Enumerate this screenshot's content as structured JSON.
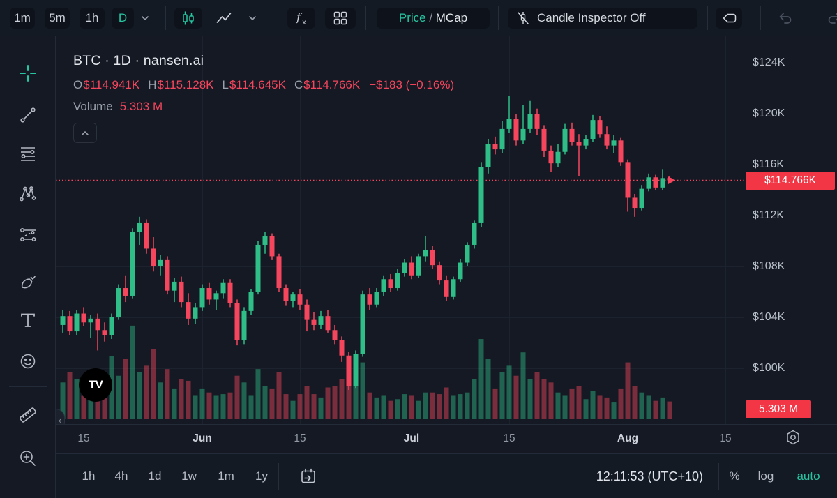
{
  "top_toolbar": {
    "intervals": [
      {
        "label": "1m"
      },
      {
        "label": "5m"
      },
      {
        "label": "1h"
      },
      {
        "label": "D",
        "active": true
      }
    ],
    "price_mcap": {
      "price": "Price",
      "sep": " / ",
      "mcap": "MCap"
    },
    "candle_inspector": "Candle Inspector Off"
  },
  "left_toolbar": {
    "tools": [
      "crosshair",
      "trend-line",
      "fib-retracement",
      "xabcd-pattern",
      "projection",
      "brush",
      "text",
      "emoji",
      "ruler",
      "zoom-in"
    ]
  },
  "legend": {
    "title": "BTC · 1D · nansen.ai",
    "ohlc": [
      {
        "label": "O",
        "value": "$114.941K"
      },
      {
        "label": "H",
        "value": "$115.128K"
      },
      {
        "label": "L",
        "value": "$114.645K"
      },
      {
        "label": "C",
        "value": "$114.766K"
      }
    ],
    "change": "−$183 (−0.16%)",
    "volume_label": "Volume",
    "volume_value": "5.303 M"
  },
  "price_axis": {
    "ticks": [
      {
        "label": "$124K",
        "price": 124
      },
      {
        "label": "$120K",
        "price": 120
      },
      {
        "label": "$116K",
        "price": 116
      },
      {
        "label": "$112K",
        "price": 112
      },
      {
        "label": "$108K",
        "price": 108
      },
      {
        "label": "$104K",
        "price": 104
      },
      {
        "label": "$100K",
        "price": 100
      }
    ],
    "price_tag": "$114.766K",
    "volume_tag": "5.303 M"
  },
  "time_axis": {
    "ticks": [
      {
        "label": "15",
        "day": 3
      },
      {
        "label": "Jun",
        "day": 20,
        "month": true
      },
      {
        "label": "15",
        "day": 34
      },
      {
        "label": "Jul",
        "day": 50,
        "month": true
      },
      {
        "label": "15",
        "day": 64
      },
      {
        "label": "Aug",
        "day": 81,
        "month": true
      },
      {
        "label": "15",
        "day": 95
      }
    ]
  },
  "bottom_toolbar": {
    "ranges": [
      "1h",
      "4h",
      "1d",
      "1w",
      "1m",
      "1y"
    ],
    "clock": "12:11:53 (UTC+10)",
    "percent": "%",
    "log": "log",
    "auto": "auto"
  },
  "watermark": "TV",
  "colors": {
    "up": "#2fbe87",
    "down": "#f6465d",
    "vol_up": "rgba(47,190,135,0.45)",
    "vol_down": "rgba(246,70,93,0.45)",
    "tag": "#f23645",
    "accent": "#26c6a2",
    "grid": "#1c232e",
    "dotted_line": "#f6465d"
  },
  "chart_data": {
    "type": "candlestick",
    "symbol": "BTC",
    "interval": "1D",
    "source": "nansen.ai",
    "ylim": [
      100,
      124
    ],
    "price_line": 114.766,
    "x_step_days": 1,
    "columns": [
      "date",
      "open",
      "high",
      "low",
      "close",
      "volume_m"
    ],
    "candles": [
      [
        "May 12",
        103.4,
        104.6,
        102.8,
        104.1,
        11
      ],
      [
        "May 13",
        104.1,
        104.5,
        102.6,
        102.9,
        14
      ],
      [
        "May 14",
        102.9,
        104.6,
        102.6,
        104.3,
        12
      ],
      [
        "May 15",
        104.3,
        104.8,
        103.3,
        103.6,
        7
      ],
      [
        "May 16",
        103.6,
        104.2,
        102.4,
        103.9,
        6.5
      ],
      [
        "May 17",
        103.9,
        104.3,
        101.4,
        103.0,
        13
      ],
      [
        "May 18",
        103.0,
        103.6,
        102.1,
        102.6,
        10
      ],
      [
        "May 19",
        102.6,
        104.3,
        102.3,
        104.0,
        19
      ],
      [
        "May 20",
        104.0,
        106.6,
        103.8,
        106.3,
        13
      ],
      [
        "May 21",
        106.3,
        107.3,
        105.2,
        105.7,
        18
      ],
      [
        "May 22",
        105.7,
        111.0,
        105.5,
        110.7,
        28
      ],
      [
        "May 23",
        110.7,
        111.9,
        109.7,
        111.4,
        14
      ],
      [
        "May 24",
        111.4,
        111.7,
        109.0,
        109.4,
        16
      ],
      [
        "May 25",
        109.4,
        110.3,
        107.6,
        108.0,
        21
      ],
      [
        "May 26",
        108.0,
        108.9,
        107.3,
        108.5,
        11
      ],
      [
        "May 27",
        108.5,
        108.8,
        105.8,
        106.1,
        15
      ],
      [
        "May 28",
        106.1,
        107.1,
        105.2,
        106.8,
        9
      ],
      [
        "May 29",
        106.8,
        107.2,
        104.8,
        105.2,
        12
      ],
      [
        "May 30",
        105.2,
        105.9,
        103.4,
        103.9,
        11.5
      ],
      [
        "May 31",
        103.9,
        105.1,
        103.5,
        104.8,
        7
      ],
      [
        "Jun 1",
        104.8,
        106.6,
        104.5,
        106.3,
        9
      ],
      [
        "Jun 2",
        106.3,
        106.7,
        105.0,
        105.4,
        8
      ],
      [
        "Jun 3",
        105.4,
        106.1,
        104.6,
        105.9,
        7
      ],
      [
        "Jun 4",
        105.9,
        107.0,
        105.5,
        106.7,
        7.5
      ],
      [
        "Jun 5",
        106.7,
        107.0,
        104.8,
        105.1,
        8
      ],
      [
        "Jun 6",
        105.1,
        105.4,
        101.8,
        102.2,
        13
      ],
      [
        "Jun 7",
        102.2,
        104.8,
        101.9,
        104.5,
        11
      ],
      [
        "Jun 8",
        104.5,
        106.2,
        104.2,
        106.0,
        7
      ],
      [
        "Jun 9",
        106.0,
        110.0,
        105.8,
        109.7,
        15
      ],
      [
        "Jun 10",
        109.7,
        110.7,
        109.0,
        110.4,
        10
      ],
      [
        "Jun 11",
        110.4,
        110.6,
        108.5,
        108.8,
        9
      ],
      [
        "Jun 12",
        108.8,
        109.0,
        106.0,
        106.3,
        14
      ],
      [
        "Jun 13",
        106.3,
        106.6,
        104.9,
        105.3,
        7.5
      ],
      [
        "Jun 14",
        105.3,
        106.0,
        104.8,
        105.8,
        5.5
      ],
      [
        "Jun 15",
        105.8,
        106.2,
        104.6,
        105.0,
        7.5
      ],
      [
        "Jun 16",
        105.0,
        105.4,
        102.9,
        103.8,
        10
      ],
      [
        "Jun 17",
        103.8,
        104.4,
        103.0,
        103.4,
        7.5
      ],
      [
        "Jun 18",
        103.4,
        104.5,
        103.1,
        104.1,
        6.5
      ],
      [
        "Jun 19",
        104.1,
        104.6,
        102.8,
        103.0,
        9.5
      ],
      [
        "Jun 20",
        103.0,
        103.4,
        101.9,
        102.2,
        10
      ],
      [
        "Jun 21",
        102.2,
        102.5,
        100.5,
        101.0,
        12
      ],
      [
        "Jun 22",
        101.0,
        101.3,
        98.3,
        98.6,
        16
      ],
      [
        "Jun 23",
        98.6,
        101.4,
        98.4,
        101.1,
        13
      ],
      [
        "Jun 24",
        101.1,
        106.1,
        100.9,
        105.8,
        17
      ],
      [
        "Jun 25",
        105.8,
        106.3,
        104.6,
        105.0,
        8
      ],
      [
        "Jun 26",
        105.0,
        106.3,
        104.8,
        106.0,
        6.5
      ],
      [
        "Jun 27",
        106.0,
        107.3,
        105.7,
        107.0,
        7
      ],
      [
        "Jun 28",
        107.0,
        107.4,
        106.0,
        106.3,
        5.5
      ],
      [
        "Jun 29",
        106.3,
        107.8,
        106.1,
        107.5,
        6
      ],
      [
        "Jun 30",
        107.5,
        108.6,
        107.2,
        108.3,
        7.5
      ],
      [
        "Jul 1",
        108.3,
        108.8,
        107.0,
        107.3,
        7
      ],
      [
        "Jul 2",
        107.3,
        109.0,
        107.1,
        108.8,
        5.5
      ],
      [
        "Jul 3",
        108.8,
        110.4,
        108.4,
        109.3,
        8
      ],
      [
        "Jul 4",
        109.3,
        109.6,
        107.8,
        108.1,
        8
      ],
      [
        "Jul 5",
        108.1,
        108.4,
        106.6,
        106.9,
        7.5
      ],
      [
        "Jul 6",
        106.9,
        107.3,
        105.3,
        105.6,
        9.5
      ],
      [
        "Jul 7",
        105.6,
        107.2,
        105.4,
        107.0,
        7
      ],
      [
        "Jul 8",
        107.0,
        108.6,
        106.8,
        108.3,
        7.5
      ],
      [
        "Jul 9",
        108.3,
        109.9,
        108.0,
        109.7,
        8
      ],
      [
        "Jul 10",
        109.7,
        111.6,
        109.4,
        111.4,
        12
      ],
      [
        "Jul 11",
        111.4,
        116.2,
        111.1,
        115.8,
        24
      ],
      [
        "Jul 12",
        115.8,
        118.0,
        115.3,
        117.6,
        18
      ],
      [
        "Jul 13",
        117.6,
        118.2,
        116.8,
        117.2,
        9
      ],
      [
        "Jul 14",
        117.2,
        119.4,
        116.9,
        118.8,
        14
      ],
      [
        "Jul 15",
        118.8,
        121.4,
        118.5,
        119.6,
        16
      ],
      [
        "Jul 16",
        119.6,
        120.0,
        117.5,
        117.9,
        13
      ],
      [
        "Jul 17",
        117.9,
        120.7,
        117.6,
        118.8,
        20
      ],
      [
        "Jul 18",
        118.8,
        121.0,
        118.5,
        120.0,
        12
      ],
      [
        "Jul 19",
        120.0,
        120.4,
        118.3,
        118.8,
        14
      ],
      [
        "Jul 20",
        118.8,
        119.1,
        116.6,
        117.1,
        12
      ],
      [
        "Jul 21",
        117.1,
        117.5,
        115.4,
        116.1,
        11
      ],
      [
        "Jul 22",
        116.1,
        117.6,
        115.8,
        117.0,
        8
      ],
      [
        "Jul 23",
        117.0,
        119.2,
        116.8,
        118.8,
        7
      ],
      [
        "Jul 24",
        118.8,
        119.3,
        117.5,
        117.8,
        9
      ],
      [
        "Jul 25",
        117.8,
        118.4,
        115.1,
        117.5,
        10
      ],
      [
        "Jul 26",
        117.5,
        118.3,
        117.2,
        118.0,
        6
      ],
      [
        "Jul 27",
        118.0,
        119.9,
        117.8,
        119.5,
        8.5
      ],
      [
        "Jul 28",
        119.5,
        119.8,
        118.1,
        118.4,
        7
      ],
      [
        "Jul 29",
        118.4,
        119.0,
        117.2,
        117.5,
        6.5
      ],
      [
        "Jul 30",
        117.5,
        118.3,
        116.9,
        117.9,
        5
      ],
      [
        "Jul 31",
        117.9,
        118.1,
        115.9,
        116.2,
        9
      ],
      [
        "Aug 1",
        116.2,
        116.4,
        112.3,
        113.4,
        17
      ],
      [
        "Aug 2",
        113.4,
        113.7,
        111.9,
        112.6,
        10
      ],
      [
        "Aug 3",
        112.6,
        114.4,
        112.4,
        114.1,
        8
      ],
      [
        "Aug 4",
        114.1,
        115.3,
        113.9,
        115.0,
        7
      ],
      [
        "Aug 5",
        115.0,
        115.2,
        114.0,
        114.2,
        5.5
      ],
      [
        "Aug 6",
        114.2,
        115.6,
        114.0,
        114.941,
        6.5
      ],
      [
        "Aug 7",
        114.941,
        115.128,
        114.645,
        114.766,
        5.303
      ]
    ]
  }
}
